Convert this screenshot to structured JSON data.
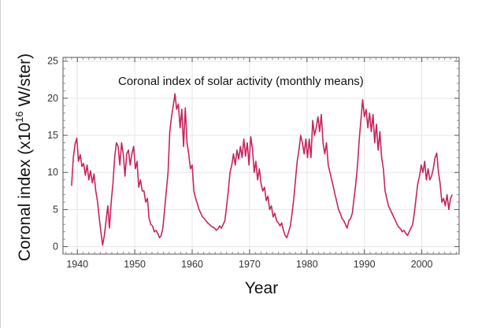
{
  "chart_data": {
    "type": "line",
    "title": "Coronal index of solar activity (monthly means)",
    "xlabel": "Year",
    "ylabel": "Coronal index (x10",
    "ylabel_sup": "16",
    "ylabel_unit": " W/ster)",
    "xlim": [
      1937.5,
      2006.5
    ],
    "ylim": [
      -1,
      25.5
    ],
    "xticks": [
      1940,
      1950,
      1960,
      1970,
      1980,
      1990,
      2000
    ],
    "yticks": [
      0,
      5,
      10,
      15,
      20,
      25
    ],
    "grid": true,
    "line_color": "#c8245e",
    "series": [
      {
        "x": [
          1939.0,
          1939.3,
          1939.6,
          1939.9,
          1940.2,
          1940.5,
          1940.8,
          1941.1,
          1941.4,
          1941.7,
          1942.0,
          1942.3,
          1942.6,
          1942.9,
          1943.2,
          1943.5,
          1943.8,
          1944.1,
          1944.4,
          1944.7,
          1945.0,
          1945.3,
          1945.6,
          1945.9,
          1946.2,
          1946.5,
          1946.8,
          1947.1,
          1947.4,
          1947.7,
          1948.0,
          1948.3,
          1948.6,
          1948.9,
          1949.2,
          1949.5,
          1949.8,
          1950.1,
          1950.4,
          1950.7,
          1951.0,
          1951.3,
          1951.6,
          1951.9,
          1952.2,
          1952.5,
          1952.8,
          1953.1,
          1953.4,
          1953.7,
          1954.0,
          1954.3,
          1954.6,
          1954.9,
          1955.2,
          1955.5,
          1955.8,
          1956.1,
          1956.4,
          1956.7,
          1957.0,
          1957.3,
          1957.6,
          1957.9,
          1958.2,
          1958.5,
          1958.8,
          1959.1,
          1959.4,
          1959.7,
          1960.0,
          1960.3,
          1960.6,
          1960.9,
          1961.2,
          1961.5,
          1961.8,
          1962.1,
          1962.4,
          1962.7,
          1963.0,
          1963.3,
          1963.6,
          1963.9,
          1964.2,
          1964.5,
          1964.8,
          1965.1,
          1965.4,
          1965.7,
          1966.0,
          1966.3,
          1966.6,
          1966.9,
          1967.2,
          1967.5,
          1967.8,
          1968.1,
          1968.4,
          1968.7,
          1969.0,
          1969.3,
          1969.6,
          1969.9,
          1970.2,
          1970.5,
          1970.8,
          1971.1,
          1971.4,
          1971.7,
          1972.0,
          1972.3,
          1972.6,
          1972.9,
          1973.2,
          1973.5,
          1973.8,
          1974.1,
          1974.4,
          1974.7,
          1975.0,
          1975.3,
          1975.6,
          1975.9,
          1976.2,
          1976.5,
          1976.8,
          1977.1,
          1977.4,
          1977.7,
          1978.0,
          1978.3,
          1978.6,
          1978.9,
          1979.2,
          1979.5,
          1979.8,
          1980.1,
          1980.4,
          1980.7,
          1981.0,
          1981.3,
          1981.6,
          1981.9,
          1982.2,
          1982.5,
          1982.8,
          1983.1,
          1983.4,
          1983.7,
          1984.0,
          1984.3,
          1984.6,
          1984.9,
          1985.2,
          1985.5,
          1985.8,
          1986.1,
          1986.4,
          1986.7,
          1987.0,
          1987.3,
          1987.6,
          1987.9,
          1988.2,
          1988.5,
          1988.8,
          1989.1,
          1989.4,
          1989.7,
          1990.0,
          1990.3,
          1990.6,
          1990.9,
          1991.2,
          1991.5,
          1991.8,
          1992.1,
          1992.4,
          1992.7,
          1993.0,
          1993.3,
          1993.6,
          1993.9,
          1994.2,
          1994.5,
          1994.8,
          1995.1,
          1995.4,
          1995.7,
          1996.0,
          1996.3,
          1996.6,
          1996.9,
          1997.2,
          1997.5,
          1997.8,
          1998.1,
          1998.4,
          1998.7,
          1999.0,
          1999.3,
          1999.6,
          1999.9,
          2000.2,
          2000.5,
          2000.8,
          2001.1,
          2001.4,
          2001.7,
          2002.0,
          2002.3,
          2002.6,
          2002.9,
          2003.2,
          2003.5,
          2003.8,
          2004.1,
          2004.4,
          2004.7,
          2005.0,
          2005.3
        ],
        "y": [
          8.2,
          12.0,
          13.8,
          14.6,
          11.5,
          12.4,
          10.8,
          11.2,
          9.6,
          11.0,
          9.0,
          10.2,
          8.6,
          9.8,
          7.5,
          6.2,
          4.0,
          2.0,
          0.2,
          1.5,
          3.5,
          5.5,
          2.5,
          6.0,
          8.5,
          12.0,
          14.0,
          13.5,
          11.0,
          14.0,
          12.5,
          9.5,
          12.5,
          13.0,
          11.0,
          12.5,
          13.5,
          10.5,
          11.5,
          8.0,
          9.0,
          7.5,
          7.5,
          6.0,
          6.5,
          3.8,
          3.0,
          2.8,
          2.0,
          2.2,
          1.8,
          1.2,
          1.5,
          2.5,
          5.0,
          7.5,
          10.0,
          15.5,
          17.5,
          19.0,
          20.6,
          18.5,
          19.2,
          16.0,
          18.5,
          13.5,
          18.7,
          14.0,
          12.5,
          10.5,
          11.0,
          7.5,
          6.5,
          5.8,
          5.0,
          4.5,
          4.0,
          3.8,
          3.5,
          3.2,
          3.0,
          2.8,
          2.6,
          2.5,
          2.2,
          2.4,
          2.8,
          2.5,
          3.0,
          3.5,
          5.5,
          7.5,
          10.0,
          11.0,
          12.5,
          11.0,
          13.0,
          11.8,
          13.5,
          12.0,
          14.5,
          12.2,
          14.0,
          11.0,
          14.8,
          13.2,
          10.0,
          11.5,
          9.0,
          10.5,
          8.5,
          7.5,
          8.0,
          6.2,
          6.8,
          5.0,
          5.5,
          4.0,
          4.5,
          3.5,
          3.2,
          2.8,
          3.2,
          2.2,
          1.5,
          1.2,
          2.0,
          2.8,
          4.5,
          6.5,
          9.0,
          11.5,
          13.0,
          15.0,
          14.0,
          12.5,
          14.5,
          12.0,
          14.5,
          12.0,
          17.0,
          15.0,
          16.0,
          17.5,
          15.5,
          17.8,
          14.0,
          12.5,
          14.0,
          11.0,
          10.0,
          9.0,
          8.0,
          7.0,
          6.0,
          5.0,
          4.5,
          3.8,
          3.5,
          3.0,
          2.5,
          3.5,
          3.8,
          4.5,
          6.5,
          8.5,
          11.0,
          14.5,
          17.0,
          19.8,
          17.5,
          18.5,
          16.0,
          18.0,
          15.5,
          17.8,
          14.0,
          16.5,
          13.0,
          15.5,
          12.0,
          10.5,
          7.5,
          6.5,
          5.5,
          5.0,
          4.5,
          4.0,
          3.5,
          3.0,
          2.6,
          2.4,
          2.0,
          2.2,
          1.8,
          1.5,
          2.0,
          2.5,
          3.0,
          4.5,
          6.5,
          8.5,
          9.5,
          11.0,
          10.0,
          11.5,
          9.0,
          10.5,
          9.0,
          9.5,
          10.5,
          12.0,
          12.6,
          10.0,
          8.5,
          6.0,
          6.5,
          5.5,
          7.0,
          5.0,
          6.5,
          7.0
        ]
      }
    ]
  }
}
